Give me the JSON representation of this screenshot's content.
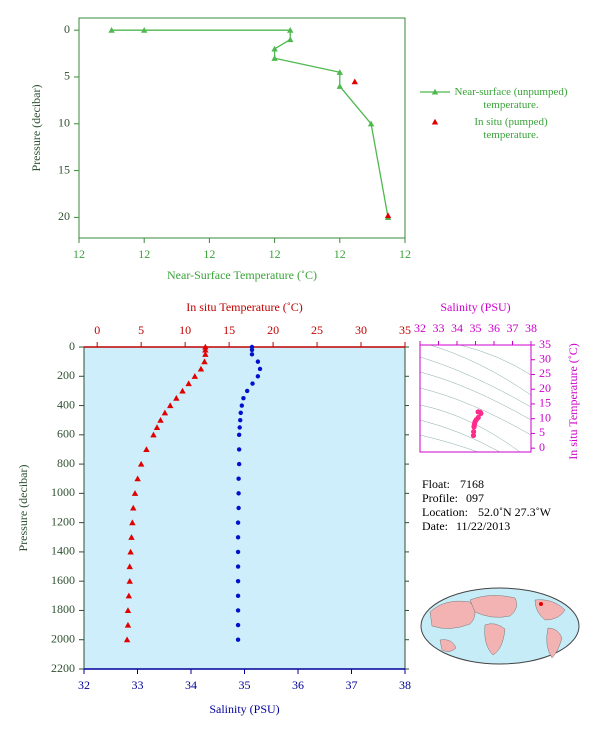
{
  "chart_data": [
    {
      "type": "line",
      "xlabel": "Near-Surface Temperature (˚C)",
      "ylabel": "Pressure (decibar)",
      "xlim": [
        11.9,
        12.4
      ],
      "xticks": [
        {
          "value": 11.9,
          "label": "12"
        },
        {
          "value": 12.0,
          "label": "12"
        },
        {
          "value": 12.1,
          "label": "12"
        },
        {
          "value": 12.2,
          "label": "12"
        },
        {
          "value": 12.3,
          "label": "12"
        },
        {
          "value": 12.4,
          "label": "12"
        }
      ],
      "ylim": [
        -1.3,
        22.2
      ],
      "y_inverted": true,
      "yticks": [
        0,
        5,
        10,
        15,
        20
      ],
      "series": [
        {
          "name": "Near-surface (unpumped) temperature.",
          "color": "#4fb84f",
          "marker": "triangle",
          "line": true,
          "y": [
            0,
            0,
            0,
            1,
            2,
            3,
            4.5,
            6,
            10,
            20
          ],
          "values": [
            11.95,
            12.0,
            12.224,
            12.224,
            12.2,
            12.2,
            12.3,
            12.3,
            12.348,
            12.374
          ]
        },
        {
          "name": "In situ (pumped) temperature.",
          "color": "#e00000",
          "marker": "triangle",
          "line": false,
          "y": [
            5.5,
            19.8
          ],
          "values": [
            12.323,
            12.374
          ]
        }
      ]
    },
    {
      "type": "profile",
      "xlabel": "Salinity (PSU)",
      "x2label": "In situ Temperature (˚C)",
      "ylabel": "Pressure (decibar)",
      "xlim": [
        32,
        38
      ],
      "xticks": [
        32,
        33,
        34,
        35,
        36,
        37,
        38
      ],
      "x2lim": [
        -1.5,
        35
      ],
      "x2ticks": [
        0,
        5,
        10,
        15,
        20,
        25,
        30,
        35
      ],
      "ylim": [
        0,
        2200
      ],
      "y_inverted": true,
      "yticks": [
        0,
        200,
        400,
        600,
        800,
        1000,
        1200,
        1400,
        1600,
        1800,
        2000,
        2200
      ],
      "background": "#cdeefa",
      "y": [
        0,
        20,
        50,
        100,
        150,
        200,
        250,
        300,
        350,
        400,
        450,
        500,
        550,
        600,
        700,
        800,
        900,
        1000,
        1100,
        1200,
        1300,
        1400,
        1500,
        1600,
        1700,
        1800,
        1900,
        2000
      ],
      "series": [
        {
          "name": "In situ Temperature",
          "axis": "x2",
          "color": "#e00000",
          "marker": "triangle",
          "values": [
            12.3,
            12.3,
            12.3,
            12.2,
            11.8,
            11.1,
            10.4,
            9.7,
            9.0,
            8.3,
            7.7,
            7.2,
            6.8,
            6.4,
            5.6,
            5.0,
            4.6,
            4.3,
            4.1,
            4.0,
            3.9,
            3.8,
            3.7,
            3.7,
            3.6,
            3.5,
            3.5,
            3.4
          ]
        },
        {
          "name": "Salinity",
          "axis": "x",
          "color": "#0010cc",
          "marker": "circle",
          "values": [
            35.14,
            35.14,
            35.14,
            35.25,
            35.29,
            35.25,
            35.15,
            35.05,
            34.98,
            34.95,
            34.93,
            34.92,
            34.91,
            34.9,
            34.9,
            34.9,
            34.89,
            34.89,
            34.89,
            34.88,
            34.88,
            34.88,
            34.88,
            34.88,
            34.88,
            34.88,
            34.88,
            34.88
          ]
        }
      ]
    },
    {
      "type": "scatter",
      "xlabel": "Salinity (PSU)",
      "ylabel": "In situ Temperature (˚C)",
      "xlim": [
        32,
        38
      ],
      "xticks": [
        32,
        33,
        34,
        35,
        36,
        37,
        38
      ],
      "ylim": [
        -1.3,
        35
      ],
      "yticks": [
        0,
        5,
        10,
        15,
        20,
        25,
        30,
        35
      ],
      "color": "#ff2a8a",
      "x": [
        35.14,
        35.25,
        35.29,
        35.15,
        35.05,
        34.98,
        34.95,
        34.93,
        34.92,
        34.9,
        34.89
      ],
      "values": [
        12.3,
        12.2,
        11.8,
        10.4,
        9.7,
        9.0,
        8.3,
        7.7,
        7.2,
        5.6,
        4.3
      ]
    }
  ],
  "info": [
    {
      "label": "Float:",
      "value": "7168"
    },
    {
      "label": "Profile:",
      "value": "097"
    },
    {
      "label": "Location:",
      "value": "52.0˚N  27.3˚W"
    },
    {
      "label": "Date:",
      "value": "11/22/2013"
    }
  ]
}
